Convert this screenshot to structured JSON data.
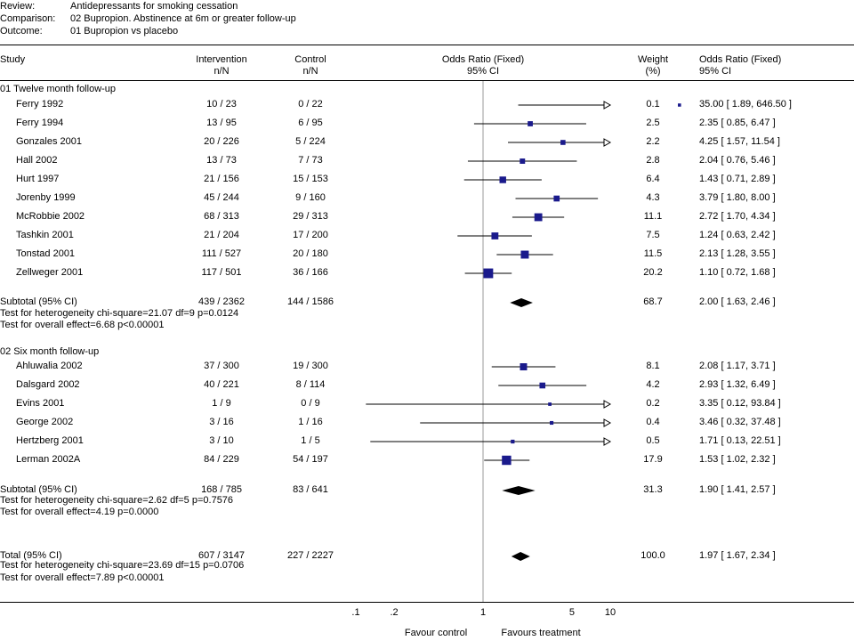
{
  "header": {
    "review_label": "Review:",
    "review_value": "Antidepressants for smoking cessation",
    "comparison_label": "Comparison:",
    "comparison_value": "02 Bupropion. Abstinence at 6m or greater follow-up",
    "outcome_label": "Outcome:",
    "outcome_value": "01 Bupropion vs placebo"
  },
  "columns": {
    "study": "Study",
    "intervention": "Intervention",
    "intervention_sub": "n/N",
    "control": "Control",
    "control_sub": "n/N",
    "or_plot": "Odds Ratio (Fixed)",
    "or_plot_sub": "95% CI",
    "weight": "Weight",
    "weight_sub": "(%)",
    "or_text": "Odds Ratio (Fixed)",
    "or_text_sub": "95% CI"
  },
  "footer": {
    "favour_control": "Favour control",
    "favours_treatment": "Favours treatment"
  },
  "chart_data": {
    "type": "forest",
    "x_scale": "log",
    "x_ticks": [
      {
        "value": 0.1,
        "label": ".1"
      },
      {
        "value": 0.2,
        "label": ".2"
      },
      {
        "value": 1,
        "label": "1"
      },
      {
        "value": 5,
        "label": "5"
      },
      {
        "value": 10,
        "label": "10"
      }
    ],
    "x_range": [
      0.1,
      10
    ],
    "groups": [
      {
        "title": "01 Twelve month follow-up",
        "studies": [
          {
            "name": "Ferry 1992",
            "intervention": "10 / 23",
            "control": "0 / 22",
            "or": 35.0,
            "lo": 1.89,
            "hi": 646.5,
            "weight": "0.1",
            "ci_text": "35.00 [ 1.89, 646.50 ]"
          },
          {
            "name": "Ferry 1994",
            "intervention": "13 / 95",
            "control": "6 / 95",
            "or": 2.35,
            "lo": 0.85,
            "hi": 6.47,
            "weight": "2.5",
            "ci_text": "2.35 [ 0.85, 6.47 ]"
          },
          {
            "name": "Gonzales 2001",
            "intervention": "20 / 226",
            "control": "5 / 224",
            "or": 4.25,
            "lo": 1.57,
            "hi": 11.54,
            "weight": "2.2",
            "ci_text": "4.25 [ 1.57, 11.54 ]"
          },
          {
            "name": "Hall 2002",
            "intervention": "13 / 73",
            "control": "7 / 73",
            "or": 2.04,
            "lo": 0.76,
            "hi": 5.46,
            "weight": "2.8",
            "ci_text": "2.04 [ 0.76, 5.46 ]"
          },
          {
            "name": "Hurt 1997",
            "intervention": "21 / 156",
            "control": "15 / 153",
            "or": 1.43,
            "lo": 0.71,
            "hi": 2.89,
            "weight": "6.4",
            "ci_text": "1.43 [ 0.71, 2.89 ]"
          },
          {
            "name": "Jorenby 1999",
            "intervention": "45 / 244",
            "control": "9 / 160",
            "or": 3.79,
            "lo": 1.8,
            "hi": 8.0,
            "weight": "4.3",
            "ci_text": "3.79 [ 1.80, 8.00 ]"
          },
          {
            "name": "McRobbie 2002",
            "intervention": "68 / 313",
            "control": "29 / 313",
            "or": 2.72,
            "lo": 1.7,
            "hi": 4.34,
            "weight": "11.1",
            "ci_text": "2.72 [ 1.70, 4.34 ]"
          },
          {
            "name": "Tashkin 2001",
            "intervention": "21 / 204",
            "control": "17 / 200",
            "or": 1.24,
            "lo": 0.63,
            "hi": 2.42,
            "weight": "7.5",
            "ci_text": "1.24 [ 0.63, 2.42 ]"
          },
          {
            "name": "Tonstad 2001",
            "intervention": "111 / 527",
            "control": "20 / 180",
            "or": 2.13,
            "lo": 1.28,
            "hi": 3.55,
            "weight": "11.5",
            "ci_text": "2.13 [ 1.28, 3.55 ]"
          },
          {
            "name": "Zellweger 2001",
            "intervention": "117 / 501",
            "control": "36 / 166",
            "or": 1.1,
            "lo": 0.72,
            "hi": 1.68,
            "weight": "20.2",
            "ci_text": "1.10 [ 0.72, 1.68 ]"
          }
        ],
        "subtotal": {
          "label": "Subtotal (95% CI)",
          "intervention": "439 / 2362",
          "control": "144 / 1586",
          "or": 2.0,
          "lo": 1.63,
          "hi": 2.46,
          "weight": "68.7",
          "ci_text": "2.00 [ 1.63, 2.46 ]"
        },
        "heterogeneity": "Test for heterogeneity chi-square=21.07 df=9 p=0.0124",
        "overall": "Test for overall effect=6.68 p<0.00001"
      },
      {
        "title": "02 Six month follow-up",
        "studies": [
          {
            "name": "Ahluwalia 2002",
            "intervention": "37 / 300",
            "control": "19 / 300",
            "or": 2.08,
            "lo": 1.17,
            "hi": 3.71,
            "weight": "8.1",
            "ci_text": "2.08 [ 1.17, 3.71 ]"
          },
          {
            "name": "Dalsgard 2002",
            "intervention": "40 / 221",
            "control": "8 / 114",
            "or": 2.93,
            "lo": 1.32,
            "hi": 6.49,
            "weight": "4.2",
            "ci_text": "2.93 [ 1.32, 6.49 ]"
          },
          {
            "name": "Evins 2001",
            "intervention": "1 / 9",
            "control": "0 / 9",
            "or": 3.35,
            "lo": 0.12,
            "hi": 93.84,
            "weight": "0.2",
            "ci_text": "3.35 [ 0.12, 93.84 ]"
          },
          {
            "name": "George 2002",
            "intervention": "3 / 16",
            "control": "1 / 16",
            "or": 3.46,
            "lo": 0.32,
            "hi": 37.48,
            "weight": "0.4",
            "ci_text": "3.46 [ 0.32, 37.48 ]"
          },
          {
            "name": "Hertzberg 2001",
            "intervention": "3 / 10",
            "control": "1 / 5",
            "or": 1.71,
            "lo": 0.13,
            "hi": 22.51,
            "weight": "0.5",
            "ci_text": "1.71 [ 0.13, 22.51 ]"
          },
          {
            "name": "Lerman 2002A",
            "intervention": "84 / 229",
            "control": "54 / 197",
            "or": 1.53,
            "lo": 1.02,
            "hi": 2.32,
            "weight": "17.9",
            "ci_text": "1.53 [ 1.02, 2.32 ]"
          }
        ],
        "subtotal": {
          "label": "Subtotal (95% CI)",
          "intervention": "168 / 785",
          "control": "83 / 641",
          "or": 1.9,
          "lo": 1.41,
          "hi": 2.57,
          "weight": "31.3",
          "ci_text": "1.90 [ 1.41, 2.57 ]"
        },
        "heterogeneity": "Test for heterogeneity chi-square=2.62 df=5 p=0.7576",
        "overall": "Test for overall effect=4.19 p=0.0000"
      }
    ],
    "total": {
      "label": "Total (95% CI)",
      "intervention": "607 / 3147",
      "control": "227 / 2227",
      "or": 1.97,
      "lo": 1.67,
      "hi": 2.34,
      "weight": "100.0",
      "ci_text": "1.97 [ 1.67, 2.34 ]"
    },
    "total_heterogeneity": "Test for heterogeneity chi-square=23.69 df=15 p=0.0706",
    "total_overall": "Test for overall effect=7.89 p<0.00001",
    "colors": {
      "marker": "#1a1a8c",
      "diamond": "#000000",
      "ci_line": "#000000",
      "null_line": "#999999"
    }
  }
}
